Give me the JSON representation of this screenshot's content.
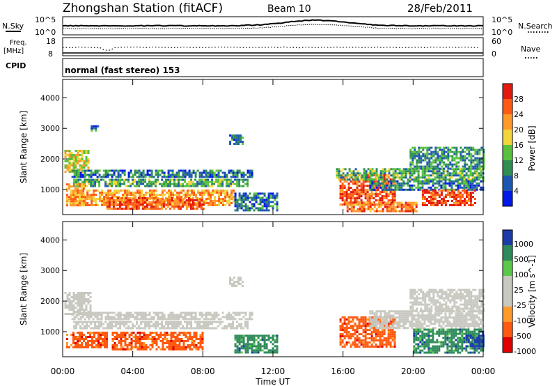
{
  "header": {
    "station": "Zhongshan Station (fitACF)",
    "beam": "Beam 10",
    "date": "28/Feb/2011"
  },
  "summary_panels": {
    "nsky_label": "N.Sky",
    "nsearch_label": "N.Search",
    "nsky_ticks": [
      "10^5",
      "10^0"
    ],
    "nsearch_ticks": [
      "10^5",
      "10^0"
    ],
    "freq_label": "Freq.",
    "freq_unit": "[MHz]",
    "freq_ticks": [
      "18",
      "8"
    ],
    "nave_label": "Nave",
    "nave_ticks": [
      "60",
      "0"
    ],
    "cpid_label": "CPID",
    "cpid_text": "normal (fast stereo) 153"
  },
  "colors": {
    "power": [
      "#0018e8",
      "#1e56b4",
      "#2f8f52",
      "#58c23e",
      "#f2d43b",
      "#ff9a2a",
      "#ff5a14",
      "#e21a10"
    ],
    "velocity": [
      "#e00000",
      "#ff5a10",
      "#ff9a2a",
      "#c8c8c0",
      "#c8c8c0",
      "#5cc84a",
      "#2e8a5a",
      "#1c3caa"
    ],
    "ground_scatter": "#c8c8c0"
  },
  "chart_data": [
    {
      "type": "heatmap",
      "name": "power",
      "xlabel": "Time UT",
      "ylabel": "Slant Range [km]",
      "xlim": [
        0,
        24
      ],
      "ylim": [
        180,
        4600
      ],
      "x_ticks": [
        "00:00",
        "04:00",
        "08:00",
        "12:00",
        "16:00",
        "20:00",
        "00:00"
      ],
      "y_ticks": [
        1000,
        2000,
        3000,
        4000
      ],
      "colorbar": {
        "label": "Power [dB]",
        "ticks": [
          "4",
          "8",
          "12",
          "16",
          "20",
          "24",
          "28"
        ],
        "range": [
          0,
          32
        ]
      },
      "regions": [
        {
          "t0": 0.1,
          "t1": 1.5,
          "r0": 1600,
          "r1": 2300,
          "v": 18
        },
        {
          "t0": 0.5,
          "t1": 10.8,
          "r0": 1400,
          "r1": 1650,
          "v": 8
        },
        {
          "t0": 0.6,
          "t1": 10.5,
          "r0": 1100,
          "r1": 1350,
          "v": 12
        },
        {
          "t0": 0.4,
          "t1": 9.8,
          "r0": 500,
          "r1": 1000,
          "v": 22
        },
        {
          "t0": 2.5,
          "t1": 8.0,
          "r0": 400,
          "r1": 750,
          "v": 26
        },
        {
          "t0": 0.2,
          "t1": 1.2,
          "r0": 500,
          "r1": 1200,
          "v": 22
        },
        {
          "t0": 9.5,
          "t1": 10.3,
          "r0": 2500,
          "r1": 2800,
          "v": 8
        },
        {
          "t0": 1.6,
          "t1": 2.0,
          "r0": 2950,
          "r1": 3100,
          "v": 8
        },
        {
          "t0": 9.8,
          "t1": 12.3,
          "r0": 300,
          "r1": 900,
          "v": 8
        },
        {
          "t0": 15.8,
          "t1": 19.0,
          "r0": 500,
          "r1": 1500,
          "v": 26
        },
        {
          "t0": 16.2,
          "t1": 20.2,
          "r0": 300,
          "r1": 600,
          "v": 24
        },
        {
          "t0": 15.6,
          "t1": 24.0,
          "r0": 1300,
          "r1": 1700,
          "v": 12
        },
        {
          "t0": 17.5,
          "t1": 24.0,
          "r0": 1000,
          "r1": 1300,
          "v": 8
        },
        {
          "t0": 19.8,
          "t1": 24.0,
          "r0": 1700,
          "r1": 2400,
          "v": 10
        },
        {
          "t0": 20.5,
          "t1": 23.5,
          "r0": 500,
          "r1": 1000,
          "v": 28
        }
      ]
    },
    {
      "type": "heatmap",
      "name": "velocity",
      "xlabel": "Time UT",
      "ylabel": "Slant Range [km]",
      "xlim": [
        0,
        24
      ],
      "ylim": [
        180,
        4600
      ],
      "x_ticks": [
        "00:00",
        "04:00",
        "08:00",
        "12:00",
        "16:00",
        "20:00",
        "00:00"
      ],
      "y_ticks": [
        1000,
        2000,
        3000,
        4000
      ],
      "colorbar": {
        "label": "Velocity [m s^-1]",
        "ticks": [
          "1000",
          "500",
          "100",
          "25",
          "-25",
          "-100",
          "-500",
          "-1000"
        ]
      },
      "regions": [
        {
          "t0": 0.1,
          "t1": 1.6,
          "r0": 1600,
          "r1": 2300,
          "v": 0
        },
        {
          "t0": 0.5,
          "t1": 10.8,
          "r0": 1400,
          "r1": 1650,
          "v": 0
        },
        {
          "t0": 0.6,
          "t1": 10.5,
          "r0": 1100,
          "r1": 1350,
          "v": 0
        },
        {
          "t0": 2.8,
          "t1": 8.0,
          "r0": 400,
          "r1": 1000,
          "v": -300
        },
        {
          "t0": 0.2,
          "t1": 2.5,
          "r0": 500,
          "r1": 1000,
          "v": -150
        },
        {
          "t0": 9.5,
          "t1": 10.3,
          "r0": 2500,
          "r1": 2800,
          "v": 0
        },
        {
          "t0": 9.8,
          "t1": 12.3,
          "r0": 300,
          "r1": 900,
          "v": 150
        },
        {
          "t0": 15.8,
          "t1": 19.0,
          "r0": 500,
          "r1": 1500,
          "v": -200
        },
        {
          "t0": 17.5,
          "t1": 24.0,
          "r0": 1100,
          "r1": 1700,
          "v": 0
        },
        {
          "t0": 19.8,
          "t1": 24.0,
          "r0": 1700,
          "r1": 2400,
          "v": 0
        },
        {
          "t0": 20.0,
          "t1": 24.0,
          "r0": 300,
          "r1": 1100,
          "v": 200
        },
        {
          "t0": 23.0,
          "t1": 24.0,
          "r0": 500,
          "r1": 900,
          "v": 800
        }
      ]
    }
  ]
}
